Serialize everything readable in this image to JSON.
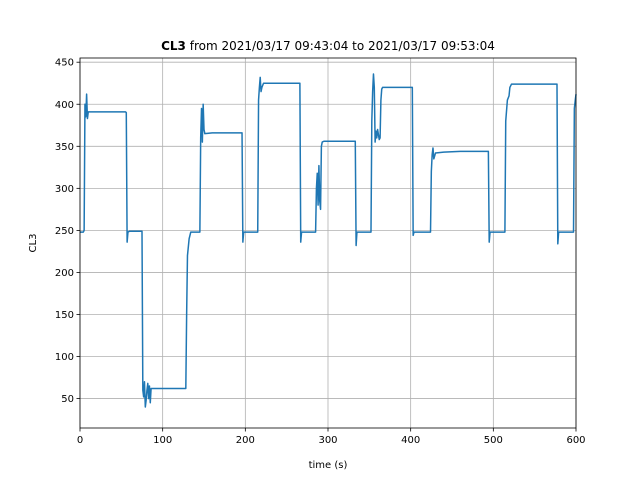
{
  "chart_data": {
    "type": "line",
    "title_bold": "CL3",
    "title_rest": " from 2021/03/17 09:43:04 to 2021/03/17 09:53:04",
    "xlabel": "time (s)",
    "ylabel": "CL3",
    "xlim": [
      0,
      600
    ],
    "ylim": [
      15,
      455
    ],
    "xticks": [
      0,
      100,
      200,
      300,
      400,
      500,
      600
    ],
    "yticks": [
      50,
      100,
      150,
      200,
      250,
      300,
      350,
      400,
      450
    ],
    "grid": true,
    "series": [
      {
        "color": "#1f77b4",
        "points": [
          [
            0,
            248
          ],
          [
            4,
            248
          ],
          [
            5,
            250
          ],
          [
            6,
            400
          ],
          [
            7,
            385
          ],
          [
            8,
            412
          ],
          [
            9,
            383
          ],
          [
            10,
            391
          ],
          [
            20,
            391
          ],
          [
            40,
            391
          ],
          [
            55,
            391
          ],
          [
            56,
            390
          ],
          [
            57,
            236
          ],
          [
            58,
            248
          ],
          [
            60,
            249
          ],
          [
            70,
            249
          ],
          [
            75,
            249
          ],
          [
            76,
            60
          ],
          [
            77,
            52
          ],
          [
            78,
            70
          ],
          [
            79,
            40
          ],
          [
            80,
            48
          ],
          [
            81,
            60
          ],
          [
            82,
            68
          ],
          [
            83,
            50
          ],
          [
            84,
            65
          ],
          [
            85,
            45
          ],
          [
            86,
            62
          ],
          [
            90,
            62
          ],
          [
            100,
            62
          ],
          [
            110,
            62
          ],
          [
            120,
            62
          ],
          [
            128,
            62
          ],
          [
            129,
            150
          ],
          [
            130,
            220
          ],
          [
            132,
            240
          ],
          [
            134,
            248
          ],
          [
            140,
            248
          ],
          [
            145,
            248
          ],
          [
            146,
            360
          ],
          [
            147,
            395
          ],
          [
            148,
            355
          ],
          [
            149,
            400
          ],
          [
            150,
            370
          ],
          [
            151,
            365
          ],
          [
            160,
            366
          ],
          [
            180,
            366
          ],
          [
            196,
            366
          ],
          [
            197,
            236
          ],
          [
            198,
            248
          ],
          [
            210,
            248
          ],
          [
            215,
            248
          ],
          [
            216,
            405
          ],
          [
            217,
            420
          ],
          [
            218,
            432
          ],
          [
            219,
            415
          ],
          [
            220,
            420
          ],
          [
            222,
            425
          ],
          [
            240,
            425
          ],
          [
            260,
            425
          ],
          [
            266,
            425
          ],
          [
            267,
            236
          ],
          [
            268,
            248
          ],
          [
            280,
            248
          ],
          [
            285,
            248
          ],
          [
            286,
            300
          ],
          [
            287,
            318
          ],
          [
            288,
            280
          ],
          [
            289,
            327
          ],
          [
            290,
            285
          ],
          [
            291,
            275
          ],
          [
            292,
            350
          ],
          [
            293,
            355
          ],
          [
            295,
            356
          ],
          [
            310,
            356
          ],
          [
            333,
            356
          ],
          [
            334,
            232
          ],
          [
            335,
            248
          ],
          [
            345,
            248
          ],
          [
            352,
            248
          ],
          [
            353,
            380
          ],
          [
            354,
            415
          ],
          [
            355,
            436
          ],
          [
            356,
            420
          ],
          [
            357,
            355
          ],
          [
            358,
            368
          ],
          [
            359,
            360
          ],
          [
            360,
            370
          ],
          [
            362,
            358
          ],
          [
            363,
            360
          ],
          [
            364,
            405
          ],
          [
            365,
            418
          ],
          [
            366,
            420
          ],
          [
            380,
            420
          ],
          [
            402,
            420
          ],
          [
            403,
            244
          ],
          [
            404,
            248
          ],
          [
            415,
            248
          ],
          [
            424,
            248
          ],
          [
            425,
            320
          ],
          [
            426,
            340
          ],
          [
            427,
            348
          ],
          [
            428,
            335
          ],
          [
            430,
            342
          ],
          [
            440,
            343
          ],
          [
            460,
            344
          ],
          [
            494,
            344
          ],
          [
            495,
            236
          ],
          [
            496,
            248
          ],
          [
            505,
            248
          ],
          [
            514,
            248
          ],
          [
            515,
            380
          ],
          [
            517,
            405
          ],
          [
            519,
            410
          ],
          [
            520,
            420
          ],
          [
            522,
            424
          ],
          [
            540,
            424
          ],
          [
            560,
            424
          ],
          [
            577,
            424
          ],
          [
            578,
            234
          ],
          [
            579,
            248
          ],
          [
            590,
            248
          ],
          [
            597,
            248
          ],
          [
            598,
            395
          ],
          [
            599,
            404
          ],
          [
            600,
            412
          ]
        ]
      }
    ]
  }
}
